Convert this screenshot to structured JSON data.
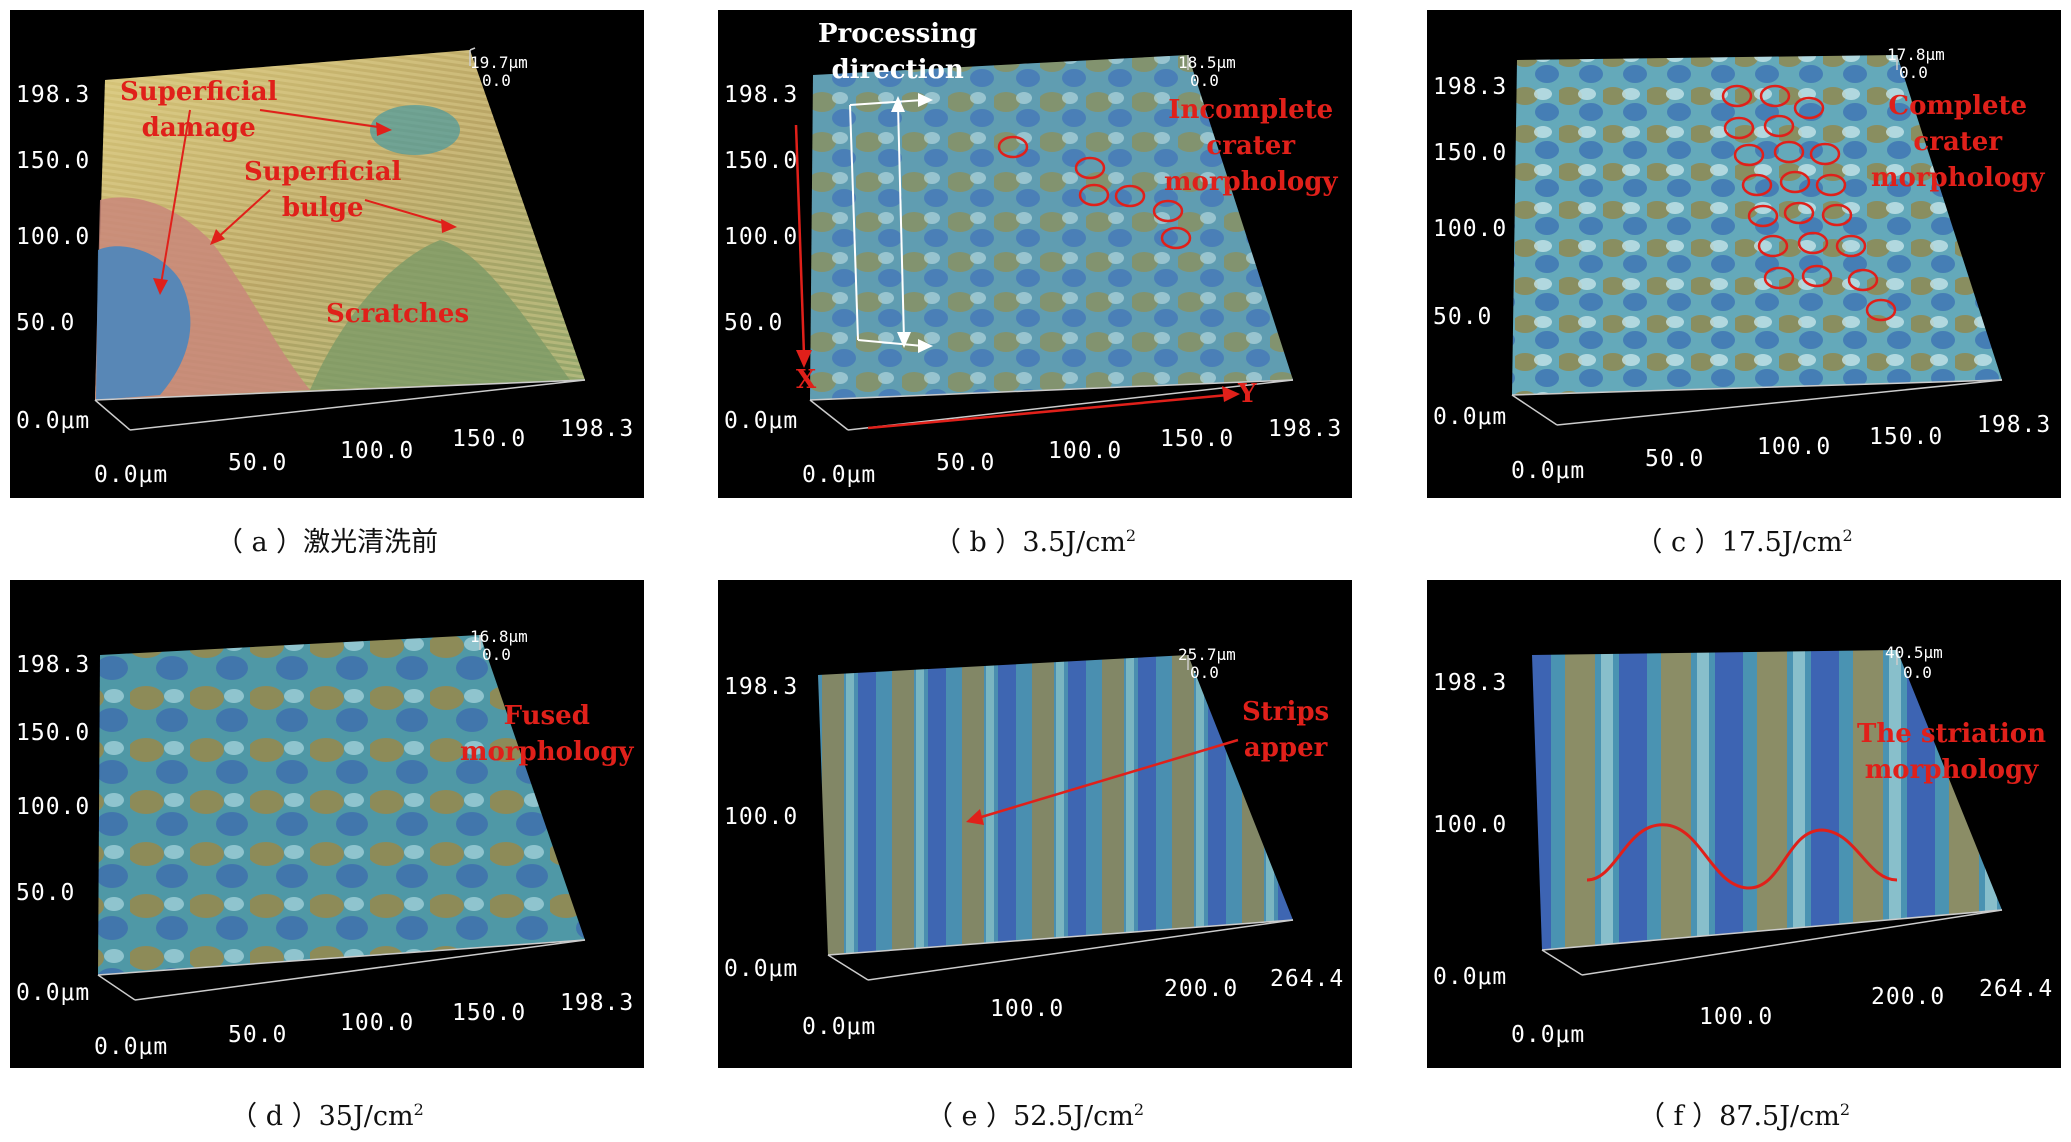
{
  "panels": [
    {
      "caption_label": "（ a ）",
      "caption_text": "激光清洗前",
      "caption_sup": "",
      "z_top": "19.7μm",
      "z_zero": "0.0",
      "y_ticks": [
        "198.3",
        "150.0",
        "100.0",
        "50.0",
        "0.0μm"
      ],
      "x_ticks": [
        "0.0μm",
        "50.0",
        "100.0",
        "150.0",
        "198.3"
      ],
      "annotations": [
        {
          "line1": "Superficial",
          "line2": "damage"
        },
        {
          "line1": "Superficial",
          "line2": "bulge"
        },
        {
          "line1": "Scratches",
          "line2": ""
        }
      ],
      "palette": {
        "base": "#c9b46a",
        "mid": "#8fa56b",
        "low": "#4a86b8",
        "high": "#c77a6a"
      }
    },
    {
      "caption_label": "（ b ）",
      "caption_text": "3.5J/cm",
      "caption_sup": "2",
      "z_top": "18.5μm",
      "z_zero": "0.0",
      "y_ticks": [
        "198.3",
        "150.0",
        "100.0",
        "50.0",
        "0.0μm"
      ],
      "x_ticks": [
        "0.0μm",
        "50.0",
        "100.0",
        "150.0",
        "198.3"
      ],
      "annotations": [
        {
          "line1": "Processing",
          "line2": "direction"
        },
        {
          "line1": "Incomplete",
          "line2": "crater",
          "line3": "morphology"
        },
        {
          "line1": "X",
          "line2": ""
        },
        {
          "line1": "Y",
          "line2": ""
        }
      ],
      "palette": {
        "base": "#5aa0b0",
        "mid": "#8a8a52",
        "low": "#3b6db5",
        "high": "#a9cfd5"
      }
    },
    {
      "caption_label": "（ c ）",
      "caption_text": "17.5J/cm",
      "caption_sup": "2",
      "z_top": "17.8μm",
      "z_zero": "0.0",
      "y_ticks": [
        "198.3",
        "150.0",
        "100.0",
        "50.0",
        "0.0μm"
      ],
      "x_ticks": [
        "0.0μm",
        "50.0",
        "100.0",
        "150.0",
        "198.3"
      ],
      "annotations": [
        {
          "line1": "Complete",
          "line2": "crater",
          "line3": "morphology"
        }
      ],
      "palette": {
        "base": "#5fa8b8",
        "mid": "#8f8a50",
        "low": "#3a70b3",
        "high": "#b8dde3"
      }
    },
    {
      "caption_label": "（ d ）",
      "caption_text": "35J/cm",
      "caption_sup": "2",
      "z_top": "16.8μm",
      "z_zero": "0.0",
      "y_ticks": [
        "198.3",
        "150.0",
        "100.0",
        "50.0",
        "0.0μm"
      ],
      "x_ticks": [
        "0.0μm",
        "50.0",
        "100.0",
        "150.0",
        "198.3"
      ],
      "annotations": [
        {
          "line1": "Fused",
          "line2": "morphology"
        }
      ],
      "palette": {
        "base": "#4f98a6",
        "mid": "#98884a",
        "low": "#3a68b0",
        "high": "#9fd0d8"
      }
    },
    {
      "caption_label": "（ e ）",
      "caption_text": "52.5J/cm",
      "caption_sup": "2",
      "z_top": "25.7μm",
      "z_zero": "0.0",
      "y_ticks": [
        "198.3",
        "100.0",
        "0.0μm"
      ],
      "x_ticks": [
        "0.0μm",
        "100.0",
        "200.0",
        "264.4"
      ],
      "annotations": [
        {
          "line1": "Strips",
          "line2": "apper"
        }
      ],
      "palette": {
        "base": "#4a8fb0",
        "mid": "#9a8448",
        "low": "#3c5fb3",
        "high": "#8fc6c9"
      }
    },
    {
      "caption_label": "（ f ）",
      "caption_text": "87.5J/cm",
      "caption_sup": "2",
      "z_top": "40.5μm",
      "z_zero": "0.0",
      "y_ticks": [
        "198.3",
        "100.0",
        "0.0μm"
      ],
      "x_ticks": [
        "0.0μm",
        "100.0",
        "200.0",
        "264.4"
      ],
      "annotations": [
        {
          "line1": "The striation",
          "line2": "morphology"
        }
      ],
      "palette": {
        "base": "#4a93b2",
        "mid": "#a08a4c",
        "low": "#3b5cb3",
        "high": "#9ccdd2"
      }
    }
  ]
}
